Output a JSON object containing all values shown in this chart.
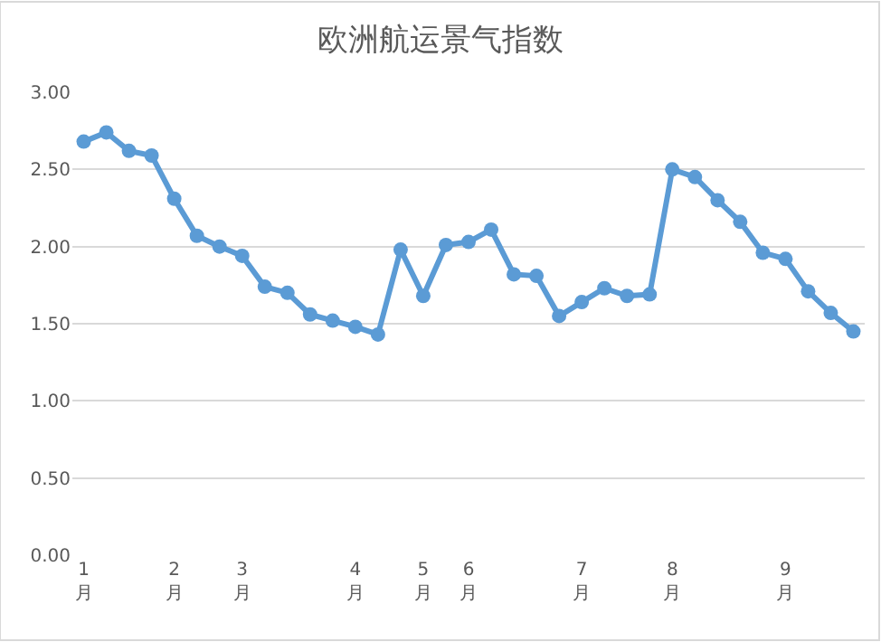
{
  "chart_data": {
    "type": "line",
    "title": "欧洲航运景气指数",
    "categories": [
      "1月",
      null,
      null,
      null,
      "2月",
      null,
      null,
      "3月",
      null,
      null,
      null,
      null,
      "4月",
      null,
      null,
      "5月",
      null,
      "6月",
      null,
      null,
      null,
      null,
      "7月",
      null,
      null,
      null,
      "8月",
      null,
      null,
      null,
      null,
      "9月",
      null,
      null,
      null
    ],
    "series": [
      {
        "color": "#5b9bd5",
        "values": [
          2.68,
          2.74,
          2.62,
          2.59,
          2.31,
          2.07,
          2.0,
          1.94,
          1.74,
          1.7,
          1.56,
          1.52,
          1.48,
          1.43,
          1.98,
          1.68,
          2.01,
          2.03,
          2.11,
          1.82,
          1.81,
          1.55,
          1.64,
          1.73,
          1.68,
          1.69,
          2.5,
          2.45,
          2.3,
          2.16,
          1.96,
          1.92,
          1.71,
          1.57,
          1.45
        ]
      }
    ],
    "ylim": [
      0,
      3
    ],
    "yticks": [
      {
        "value": 0,
        "label": "0.00"
      },
      {
        "value": 0.5,
        "label": "0.50"
      },
      {
        "value": 1,
        "label": "1.00"
      },
      {
        "value": 1.5,
        "label": "1.50"
      },
      {
        "value": 2,
        "label": "2.00"
      },
      {
        "value": 2.5,
        "label": "2.50"
      },
      {
        "value": 3,
        "label": "3.00"
      }
    ],
    "grid": "y",
    "marker": "circle",
    "line_style": "solid",
    "legend": false
  }
}
